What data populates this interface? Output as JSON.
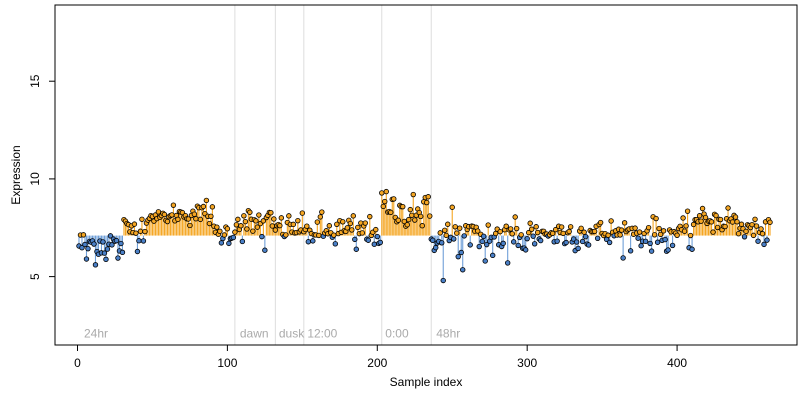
{
  "chart_data": {
    "type": "scatter",
    "title": "",
    "xlabel": "Sample index",
    "ylabel": "Expression",
    "xlim": [
      -15,
      480
    ],
    "ylim": [
      1.5,
      18.9
    ],
    "x_ticks": [
      0,
      100,
      200,
      300,
      400
    ],
    "y_ticks": [
      5,
      10,
      15
    ],
    "grid": false,
    "legend": "none",
    "colors": {
      "point_fill_high": "#f5a623",
      "point_fill_low": "#4a80c8",
      "stem_high": "#f5a623",
      "stem_low": "#6f9fd8",
      "point_stroke": "#000000",
      "boundary": "#dddddd",
      "region_label": "#aaaaaa"
    },
    "baseline": 7.1,
    "region_labels": [
      {
        "text": "24hr",
        "x": 3
      },
      {
        "text": "dawn",
        "x": 107
      },
      {
        "text": "dusk",
        "x": 133
      },
      {
        "text": "12:00",
        "x": 152
      },
      {
        "text": "0:00",
        "x": 204
      },
      {
        "text": "48hr",
        "x": 238
      }
    ],
    "boundaries": [
      105,
      132,
      151,
      203,
      236
    ],
    "segments": [
      {
        "start": 1,
        "end": 30,
        "mean": 6.6,
        "sd": 0.5
      },
      {
        "start": 31,
        "end": 45,
        "mean": 7.4,
        "sd": 0.45
      },
      {
        "start": 46,
        "end": 63,
        "mean": 8.05,
        "sd": 0.18
      },
      {
        "start": 64,
        "end": 90,
        "mean": 8.2,
        "sd": 0.3
      },
      {
        "start": 91,
        "end": 104,
        "mean": 7.2,
        "sd": 0.3
      },
      {
        "start": 105,
        "end": 131,
        "mean": 7.7,
        "sd": 0.45
      },
      {
        "start": 132,
        "end": 150,
        "mean": 7.5,
        "sd": 0.35
      },
      {
        "start": 151,
        "end": 202,
        "mean": 7.3,
        "sd": 0.5
      },
      {
        "start": 203,
        "end": 235,
        "mean": 8.3,
        "sd": 0.5
      },
      {
        "start": 236,
        "end": 300,
        "mean": 7.0,
        "sd": 0.55
      },
      {
        "start": 301,
        "end": 410,
        "mean": 7.2,
        "sd": 0.45
      },
      {
        "start": 411,
        "end": 440,
        "mean": 7.9,
        "sd": 0.35
      },
      {
        "start": 441,
        "end": 462,
        "mean": 7.4,
        "sd": 0.35
      }
    ],
    "outliers": [
      {
        "x": 6,
        "y": 5.9
      },
      {
        "x": 27,
        "y": 5.95
      },
      {
        "x": 86,
        "y": 8.9
      },
      {
        "x": 125,
        "y": 6.35
      },
      {
        "x": 186,
        "y": 6.4
      },
      {
        "x": 206,
        "y": 9.35
      },
      {
        "x": 224,
        "y": 9.2
      },
      {
        "x": 244,
        "y": 4.8
      },
      {
        "x": 250,
        "y": 8.55
      },
      {
        "x": 257,
        "y": 5.35
      },
      {
        "x": 272,
        "y": 5.8
      },
      {
        "x": 287,
        "y": 5.7
      },
      {
        "x": 292,
        "y": 8.05
      },
      {
        "x": 393,
        "y": 6.3
      },
      {
        "x": 410,
        "y": 6.4
      },
      {
        "x": 458,
        "y": 6.65
      }
    ]
  }
}
